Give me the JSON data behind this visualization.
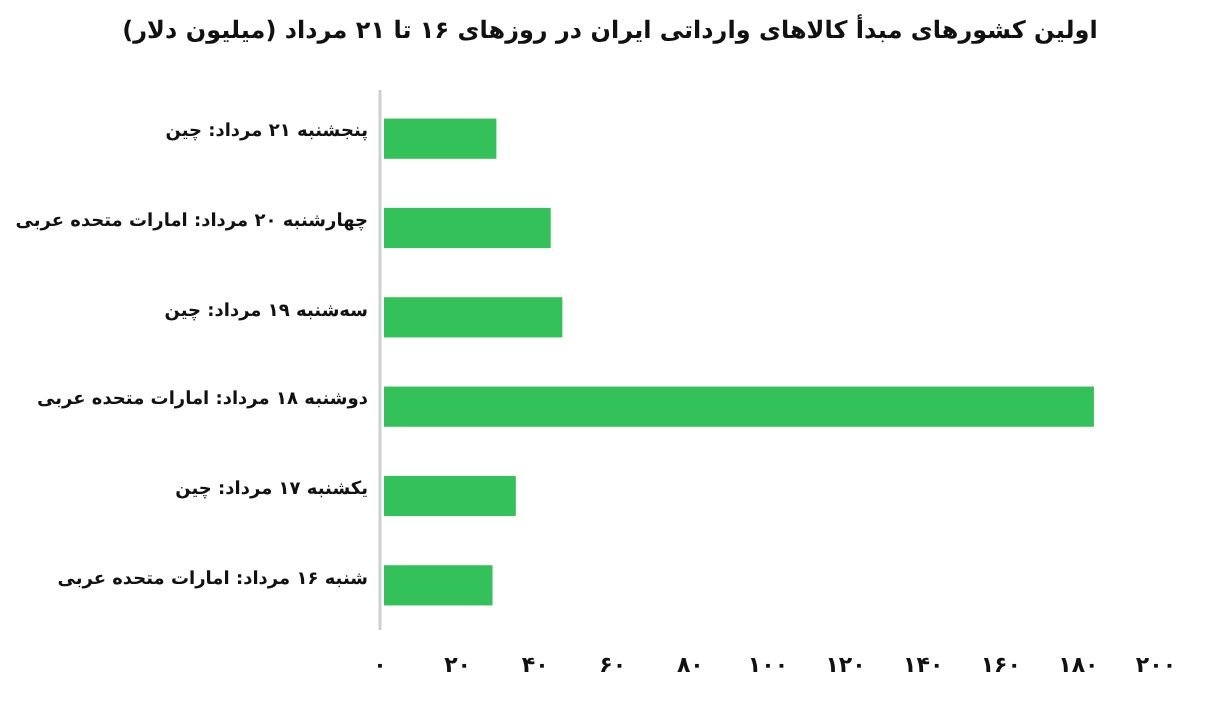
{
  "chart_data": {
    "type": "bar",
    "orientation": "horizontal",
    "title": "اولین کشورهای مبدأ کالاهای وارداتی ایران در روزهای ۱۶ تا ۲۱ مرداد (میلیون دلار)",
    "categories": [
      "پنجشنبه ۲۱ مرداد: چین",
      "چهارشنبه ۲۰ مرداد: امارات متحده عربی",
      "سه‌شنبه ۱۹ مرداد: چین",
      "دوشنبه ۱۸ مرداد: امارات متحده عربی",
      "یکشنبه ۱۷ مرداد: چین",
      "شنبه ۱۶ مرداد: امارات متحده عربی"
    ],
    "values": [
      30,
      44,
      47,
      184,
      35,
      29
    ],
    "color": "#33c15a",
    "xlim": [
      0,
      200
    ],
    "xticks": [
      {
        "value": 0,
        "label": "۰"
      },
      {
        "value": 20,
        "label": "۲۰"
      },
      {
        "value": 40,
        "label": "۴۰"
      },
      {
        "value": 60,
        "label": "۶۰"
      },
      {
        "value": 80,
        "label": "۸۰"
      },
      {
        "value": 100,
        "label": "۱۰۰"
      },
      {
        "value": 120,
        "label": "۱۲۰"
      },
      {
        "value": 140,
        "label": "۱۴۰"
      },
      {
        "value": 160,
        "label": "۱۶۰"
      },
      {
        "value": 180,
        "label": "۱۸۰"
      },
      {
        "value": 200,
        "label": "۲۰۰"
      }
    ],
    "grid": false
  }
}
